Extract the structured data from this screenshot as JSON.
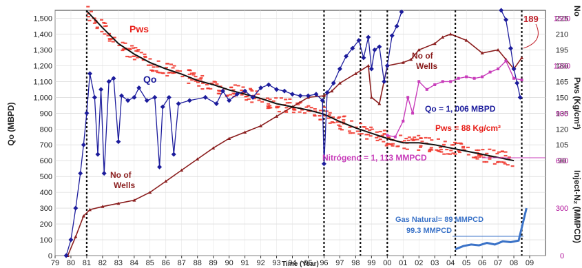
{
  "chart_data": {
    "type": "line",
    "xlabel": "Time (Year)",
    "xlim": [
      1979,
      2010
    ],
    "x_ticks": [
      "79",
      "80",
      "81",
      "82",
      "83",
      "84",
      "85",
      "86",
      "87",
      "88",
      "89",
      "90",
      "91",
      "92",
      "93",
      "94",
      "95",
      "96",
      "97",
      "98",
      "99",
      "00",
      "01",
      "02",
      "03",
      "04",
      "05",
      "06",
      "07",
      "08",
      "09"
    ],
    "left_axis": {
      "label": "Qo (MBPD)",
      "ylim": [
        0,
        1550
      ],
      "ticks": [
        0,
        100,
        200,
        300,
        400,
        500,
        600,
        700,
        800,
        900,
        1000,
        1100,
        1200,
        1300,
        1400,
        1500
      ],
      "tick_labels": [
        "0",
        "100",
        "200",
        "300",
        "400",
        "500",
        "600",
        "700",
        "800",
        "900",
        "1,000",
        "1,100",
        "1,200",
        "1,300",
        "1,400",
        "1,500"
      ]
    },
    "right_axis_pws": {
      "label": "Pws (Kg/cm²)",
      "ylim": [
        0,
        232.5
      ],
      "ticks": [
        90,
        105,
        120,
        135,
        150,
        165,
        180,
        195,
        210,
        225
      ],
      "top_label": "No"
    },
    "right_axis_n2": {
      "label": "Inject-N₂ (MMPCD)",
      "ylim": [
        0,
        1550
      ],
      "ticks": [
        0,
        300,
        600,
        900,
        1200,
        1500
      ]
    },
    "vertical_lines": [
      1981,
      1996,
      1998.3,
      2000,
      2004.3,
      2008.5
    ],
    "series": [
      {
        "name": "Pws",
        "color": "#e8201a",
        "points": [
          [
            1981,
            232
          ],
          [
            1982,
            216
          ],
          [
            1983,
            201
          ],
          [
            1984,
            191
          ],
          [
            1985,
            183
          ],
          [
            1986,
            177
          ],
          [
            1987,
            172
          ],
          [
            1988,
            166
          ],
          [
            1989,
            162
          ],
          [
            1990,
            157
          ],
          [
            1991,
            153
          ],
          [
            1992,
            149
          ],
          [
            1993,
            144
          ],
          [
            1994,
            141
          ],
          [
            1995,
            138
          ],
          [
            1996,
            134
          ],
          [
            1997,
            127
          ],
          [
            1998,
            121
          ],
          [
            1999,
            116
          ],
          [
            2000,
            111
          ],
          [
            2001,
            107
          ],
          [
            2002,
            107
          ],
          [
            2003,
            105
          ],
          [
            2004,
            102
          ],
          [
            2005,
            99
          ],
          [
            2006,
            96
          ],
          [
            2007,
            93
          ],
          [
            2008,
            90
          ]
        ]
      },
      {
        "name": "Qo",
        "color": "#1c1c9c",
        "points": [
          [
            1979.7,
            0
          ],
          [
            1980,
            100
          ],
          [
            1980.3,
            300
          ],
          [
            1980.6,
            520
          ],
          [
            1980.8,
            700
          ],
          [
            1981,
            900
          ],
          [
            1981.2,
            1150
          ],
          [
            1981.5,
            1000
          ],
          [
            1981.7,
            640
          ],
          [
            1981.9,
            1050
          ],
          [
            1982.1,
            520
          ],
          [
            1982.4,
            1100
          ],
          [
            1982.7,
            1120
          ],
          [
            1983,
            720
          ],
          [
            1983.2,
            1010
          ],
          [
            1983.6,
            980
          ],
          [
            1984,
            1000
          ],
          [
            1984.3,
            1060
          ],
          [
            1984.8,
            980
          ],
          [
            1985.3,
            1000
          ],
          [
            1985.6,
            560
          ],
          [
            1985.8,
            940
          ],
          [
            1986.2,
            1000
          ],
          [
            1986.5,
            640
          ],
          [
            1986.8,
            960
          ],
          [
            1987.5,
            980
          ],
          [
            1988.5,
            1000
          ],
          [
            1989.2,
            960
          ],
          [
            1989.6,
            1040
          ],
          [
            1990,
            980
          ],
          [
            1990.5,
            1020
          ],
          [
            1991,
            1040
          ],
          [
            1991.5,
            1000
          ],
          [
            1992,
            1060
          ],
          [
            1992.5,
            1080
          ],
          [
            1993,
            1050
          ],
          [
            1993.5,
            1040
          ],
          [
            1994,
            1020
          ],
          [
            1994.5,
            1010
          ],
          [
            1995,
            1010
          ],
          [
            1995.5,
            1020
          ],
          [
            1995.9,
            980
          ],
          [
            1996,
            580
          ],
          [
            1996.2,
            1030
          ],
          [
            1996.6,
            1090
          ],
          [
            1997,
            1180
          ],
          [
            1997.4,
            1260
          ],
          [
            1997.8,
            1310
          ],
          [
            1998.2,
            1360
          ],
          [
            1998.5,
            1250
          ],
          [
            1998.8,
            1380
          ],
          [
            1999,
            1180
          ],
          [
            1999.2,
            1300
          ],
          [
            1999.5,
            1320
          ],
          [
            1999.8,
            1100
          ],
          [
            2000,
            1200
          ],
          [
            2000.3,
            1390
          ],
          [
            2000.6,
            1450
          ],
          [
            2000.9,
            1540
          ]
        ]
      },
      {
        "name": "Qo_late",
        "color": "#1c1c9c",
        "points": [
          [
            2007.2,
            1550
          ],
          [
            2007.5,
            1490
          ],
          [
            2007.8,
            1310
          ],
          [
            2008,
            1180
          ],
          [
            2008.2,
            1090
          ],
          [
            2008.4,
            1000
          ]
        ]
      },
      {
        "name": "No of Wells",
        "color": "#8a1d1d",
        "points": [
          [
            1979.8,
            0
          ],
          [
            1980.3,
            120
          ],
          [
            1980.8,
            250
          ],
          [
            1981.2,
            290
          ],
          [
            1982,
            310
          ],
          [
            1983,
            330
          ],
          [
            1984,
            350
          ],
          [
            1985,
            400
          ],
          [
            1986,
            470
          ],
          [
            1987,
            540
          ],
          [
            1988,
            610
          ],
          [
            1989,
            680
          ],
          [
            1990,
            740
          ],
          [
            1991,
            780
          ],
          [
            1992,
            820
          ],
          [
            1993,
            880
          ],
          [
            1994,
            940
          ],
          [
            1995,
            1000
          ],
          [
            1996,
            1010
          ],
          [
            1996.5,
            1040
          ],
          [
            1997,
            1090
          ],
          [
            1998,
            1150
          ],
          [
            1998.8,
            1200
          ],
          [
            1999,
            1000
          ],
          [
            1999.5,
            960
          ],
          [
            2000,
            1200
          ],
          [
            2001,
            1220
          ],
          [
            2001.5,
            1240
          ],
          [
            2002,
            1300
          ],
          [
            2003,
            1340
          ],
          [
            2003.5,
            1380
          ],
          [
            2004,
            1400
          ],
          [
            2005,
            1360
          ],
          [
            2006,
            1280
          ],
          [
            2007,
            1300
          ],
          [
            2007.5,
            1240
          ],
          [
            2008,
            1180
          ],
          [
            2008.5,
            1250
          ]
        ]
      },
      {
        "name": "Nitrógeno",
        "color": "#c83cba",
        "points": [
          [
            2000,
            760
          ],
          [
            2000.5,
            750
          ],
          [
            2001,
            850
          ],
          [
            2001.3,
            1000
          ],
          [
            2001.6,
            900
          ],
          [
            2002,
            1100
          ],
          [
            2002.5,
            1050
          ],
          [
            2003,
            1080
          ],
          [
            2003.5,
            1100
          ],
          [
            2004,
            1100
          ],
          [
            2004.5,
            1120
          ],
          [
            2005,
            1130
          ],
          [
            2005.5,
            1120
          ],
          [
            2006,
            1130
          ],
          [
            2006.5,
            1160
          ],
          [
            2007,
            1180
          ],
          [
            2007.5,
            1230
          ],
          [
            2008,
            1120
          ],
          [
            2008.5,
            1110
          ]
        ]
      },
      {
        "name": "Gas Natural",
        "color": "#3b73c8",
        "points": [
          [
            2004.3,
            40
          ],
          [
            2004.8,
            60
          ],
          [
            2005.3,
            70
          ],
          [
            2005.8,
            65
          ],
          [
            2006.3,
            80
          ],
          [
            2006.8,
            70
          ],
          [
            2007.3,
            90
          ],
          [
            2007.8,
            85
          ],
          [
            2008.3,
            95
          ],
          [
            2008.8,
            300
          ]
        ]
      }
    ],
    "annotations": {
      "pws_label": "Pws",
      "qo_label": "Qo",
      "wells_label_1a": "No of",
      "wells_label_1b": "Wells",
      "wells_label_2a": "No of",
      "wells_label_2b": "Wells",
      "qo_value": "Qo = 1, 006 MBPD",
      "pws_value": "Pws = 88 Kg/cm²",
      "n2_value": "Nitrógeno = 1, 113 MMPCD",
      "gas_natural": "Gas Natural=  89 MMPCD",
      "gas_natural_2": "99.3 MMPCD",
      "wells_count": "189"
    }
  }
}
